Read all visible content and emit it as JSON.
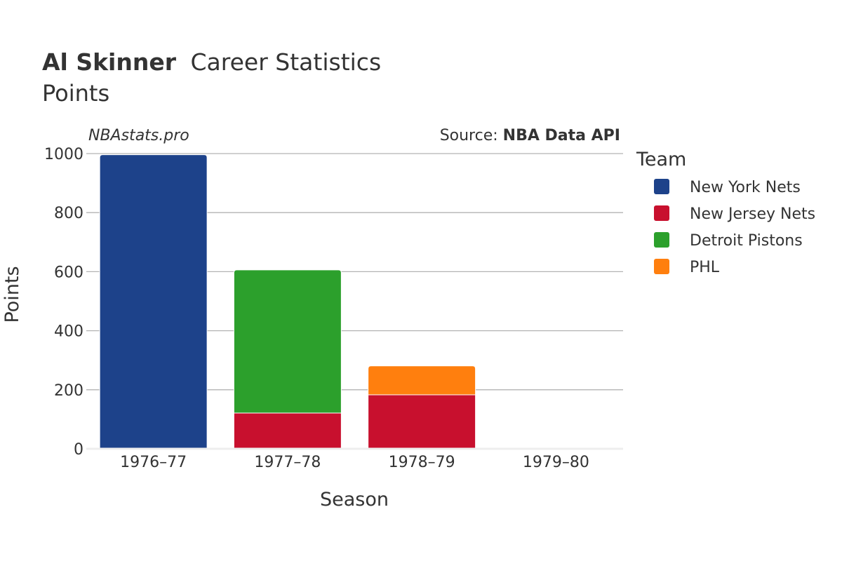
{
  "header": {
    "player_name": "Al Skinner",
    "title_suffix": "Career Statistics",
    "subtitle": "Points",
    "brand": "NBAstats.pro",
    "source_prefix": "Source: ",
    "source_name": "NBA Data API"
  },
  "legend": {
    "title": "Team",
    "placement": "right"
  },
  "chart_data": {
    "type": "bar",
    "stacked": true,
    "categories": [
      "1976–77",
      "1977–78",
      "1978–79",
      "1979–80"
    ],
    "series": [
      {
        "name": "New York Nets",
        "color": "#1d428a",
        "values": [
          996,
          0,
          0,
          0
        ]
      },
      {
        "name": "New Jersey Nets",
        "color": "#c8102e",
        "values": [
          0,
          121,
          183,
          0
        ]
      },
      {
        "name": "Detroit Pistons",
        "color": "#2ca02c",
        "values": [
          0,
          485,
          0,
          0
        ]
      },
      {
        "name": "PHL",
        "color": "#ff7f0e",
        "values": [
          0,
          0,
          98,
          0
        ]
      }
    ],
    "xlabel": "Season",
    "ylabel": "Points",
    "ylim": [
      0,
      1000
    ],
    "yticks": [
      0,
      200,
      400,
      600,
      800,
      1000
    ],
    "grid": true
  }
}
